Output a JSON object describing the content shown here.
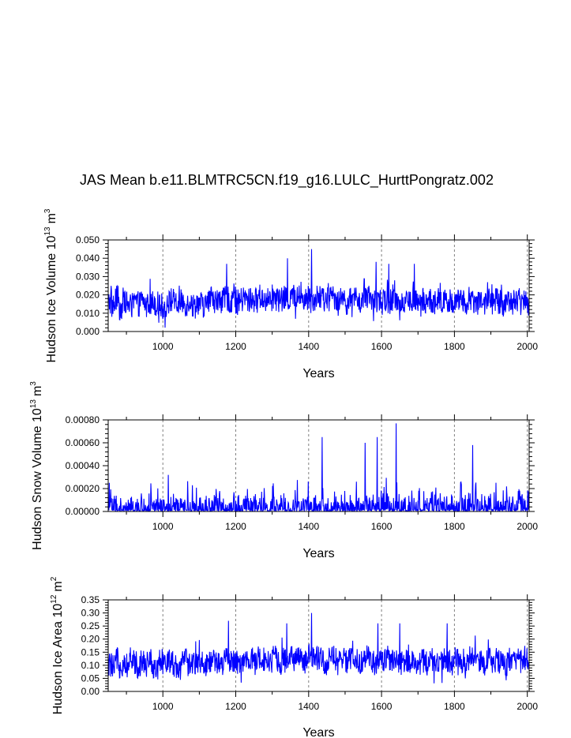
{
  "figure": {
    "title": "JAS Mean b.e11.BLMTRC5CN.f19_g16.LULC_HurttPongratz.002",
    "colors": {
      "line": "#0000ff",
      "axes": "#000000",
      "grid": "#808080"
    }
  },
  "chart_data": [
    {
      "type": "line",
      "title": "JAS Mean b.e11.BLMTRC5CN.f19_g16.LULC_HurttPongratz.002",
      "xlabel": "Years",
      "ylabel": "Hudson Ice Volume 10^13 m^3",
      "ylabel_parts": {
        "main": "Hudson Ice Volume 10",
        "exp1": "13",
        "unit": "m",
        "exp2": "3"
      },
      "xlim": [
        850,
        2005
      ],
      "ylim": [
        0.0,
        0.05
      ],
      "xticks": [
        1000,
        1200,
        1400,
        1600,
        1800,
        2000
      ],
      "xtick_labels": [
        "1000",
        "1200",
        "1400",
        "1600",
        "1800",
        "2000"
      ],
      "yticks": [
        0.0,
        0.01,
        0.02,
        0.03,
        0.04,
        0.05
      ],
      "ytick_labels": [
        "0.000",
        "0.010",
        "0.020",
        "0.030",
        "0.040",
        "0.050"
      ],
      "grid": "vertical dashed at major x ticks",
      "series": [
        {
          "x_start": 850,
          "x_step": 10,
          "values": [
            0.016,
            0.014,
            0.018,
            0.013,
            0.017,
            0.015,
            0.014,
            0.016,
            0.015,
            0.017,
            0.014,
            0.015,
            0.016,
            0.015,
            0.014,
            0.013,
            0.016,
            0.017,
            0.015,
            0.014,
            0.016,
            0.015,
            0.017,
            0.014,
            0.016,
            0.015,
            0.014,
            0.016,
            0.018,
            0.017,
            0.016,
            0.017,
            0.018,
            0.017,
            0.019,
            0.016,
            0.017,
            0.018,
            0.017,
            0.018,
            0.017,
            0.019,
            0.018,
            0.017,
            0.018,
            0.019,
            0.018,
            0.017,
            0.018,
            0.017,
            0.019,
            0.018,
            0.019,
            0.018,
            0.017,
            0.019,
            0.018,
            0.019,
            0.018,
            0.017,
            0.018,
            0.019,
            0.018,
            0.017,
            0.018,
            0.016,
            0.017,
            0.018,
            0.017,
            0.016,
            0.017,
            0.018,
            0.017,
            0.016,
            0.017,
            0.016,
            0.017,
            0.016,
            0.018,
            0.017,
            0.016,
            0.017,
            0.016,
            0.017,
            0.016,
            0.015,
            0.017,
            0.016,
            0.017,
            0.016,
            0.017,
            0.016,
            0.018,
            0.017,
            0.016,
            0.017,
            0.016,
            0.017,
            0.016,
            0.018,
            0.017,
            0.016,
            0.017,
            0.016,
            0.017,
            0.016,
            0.017,
            0.016,
            0.015,
            0.016,
            0.017,
            0.016,
            0.017,
            0.016,
            0.018,
            0.017
          ]
        }
      ],
      "peaks": [
        [
          1175,
          0.037
        ],
        [
          1342,
          0.04
        ],
        [
          1408,
          0.045
        ],
        [
          1585,
          0.038
        ],
        [
          1620,
          0.037
        ],
        [
          1690,
          0.037
        ]
      ]
    },
    {
      "type": "line",
      "xlabel": "Years",
      "ylabel": "Hudson Snow Volume 10^13 m^3",
      "ylabel_parts": {
        "main": "Hudson Snow Volume 10",
        "exp1": "13",
        "unit": "m",
        "exp2": "3"
      },
      "xlim": [
        850,
        2005
      ],
      "ylim": [
        0.0,
        0.0008
      ],
      "xticks": [
        1000,
        1200,
        1400,
        1600,
        1800,
        2000
      ],
      "xtick_labels": [
        "1000",
        "1200",
        "1400",
        "1600",
        "1800",
        "2000"
      ],
      "yticks": [
        0.0,
        0.0002,
        0.0004,
        0.0006,
        0.0008
      ],
      "ytick_labels": [
        "0.00000",
        "0.00020",
        "0.00040",
        "0.00060",
        "0.00080"
      ],
      "grid": "vertical dashed at major x ticks",
      "series": [
        {
          "x_start": 850,
          "x_step": 10,
          "values": [
            3e-05,
            4e-05,
            2e-05,
            3e-05,
            2e-05,
            3e-05,
            2e-05,
            3e-05,
            2e-05,
            3e-05,
            2e-05,
            4e-05,
            3e-05,
            3e-05,
            4e-05,
            3e-05,
            2e-05,
            4e-05,
            3e-05,
            3e-05,
            2e-05,
            4e-05,
            3e-05,
            4e-05,
            3e-05,
            2e-05,
            4e-05,
            3e-05,
            3e-05,
            4e-05,
            3e-05,
            3e-05,
            2e-05,
            3e-05,
            4e-05,
            3e-05,
            2e-05,
            4e-05,
            3e-05,
            3e-05,
            4e-05,
            3e-05,
            3e-05,
            2e-05,
            3e-05,
            4e-05,
            3e-05,
            3e-05,
            4e-05,
            2e-05,
            3e-05,
            4e-05,
            3e-05,
            3e-05,
            4e-05,
            3e-05,
            3e-05,
            2e-05,
            3e-05,
            2e-05,
            3e-05,
            2e-05,
            3e-05,
            2e-05,
            3e-05,
            2e-05,
            3e-05,
            2e-05,
            4e-05,
            3e-05,
            4e-05,
            3e-05,
            4e-05,
            3e-05,
            5e-05,
            4e-05,
            5e-05,
            4e-05,
            3e-05,
            4e-05,
            3e-05,
            4e-05,
            3e-05,
            4e-05,
            3e-05,
            4e-05,
            3e-05,
            4e-05,
            3e-05,
            4e-05,
            3e-05,
            3e-05,
            4e-05,
            3e-05,
            4e-05,
            3e-05,
            4e-05,
            3e-05,
            4e-05,
            3e-05,
            4e-05,
            3e-05,
            4e-05,
            3e-05,
            4e-05,
            3e-05,
            4e-05,
            3e-05,
            3e-05,
            4e-05,
            3e-05,
            4e-05,
            3e-05,
            4e-05,
            5e-05,
            6e-05
          ]
        }
      ],
      "peaks": [
        [
          853,
          0.00025
        ],
        [
          1015,
          0.00032
        ],
        [
          1437,
          0.00065
        ],
        [
          1555,
          0.0006
        ],
        [
          1588,
          0.00065
        ],
        [
          1640,
          0.00077
        ],
        [
          1850,
          0.00058
        ]
      ]
    },
    {
      "type": "line",
      "xlabel": "Years",
      "ylabel": "Hudson Ice Area 10^12 m^2",
      "ylabel_parts": {
        "main": "Hudson Ice Area 10",
        "exp1": "12",
        "unit": "m",
        "exp2": "2"
      },
      "xlim": [
        850,
        2005
      ],
      "ylim": [
        0.0,
        0.35
      ],
      "xticks": [
        1000,
        1200,
        1400,
        1600,
        1800,
        2000
      ],
      "xtick_labels": [
        "1000",
        "1200",
        "1400",
        "1600",
        "1800",
        "2000"
      ],
      "yticks": [
        0.0,
        0.05,
        0.1,
        0.15,
        0.2,
        0.25,
        0.3,
        0.35
      ],
      "ytick_labels": [
        "0.00",
        "0.05",
        "0.10",
        "0.15",
        "0.20",
        "0.25",
        "0.30",
        "0.35"
      ],
      "grid": "vertical dashed at major x ticks",
      "series": [
        {
          "x_start": 850,
          "x_step": 10,
          "values": [
            0.1,
            0.09,
            0.12,
            0.1,
            0.11,
            0.1,
            0.12,
            0.11,
            0.1,
            0.12,
            0.1,
            0.11,
            0.1,
            0.09,
            0.11,
            0.1,
            0.12,
            0.11,
            0.1,
            0.09,
            0.11,
            0.12,
            0.11,
            0.1,
            0.12,
            0.11,
            0.1,
            0.11,
            0.12,
            0.11,
            0.1,
            0.11,
            0.12,
            0.11,
            0.12,
            0.11,
            0.1,
            0.12,
            0.11,
            0.12,
            0.11,
            0.13,
            0.12,
            0.11,
            0.12,
            0.13,
            0.12,
            0.11,
            0.12,
            0.11,
            0.13,
            0.12,
            0.13,
            0.12,
            0.11,
            0.13,
            0.12,
            0.13,
            0.12,
            0.11,
            0.12,
            0.13,
            0.12,
            0.11,
            0.12,
            0.11,
            0.12,
            0.13,
            0.12,
            0.11,
            0.12,
            0.13,
            0.12,
            0.11,
            0.12,
            0.11,
            0.12,
            0.11,
            0.13,
            0.12,
            0.11,
            0.12,
            0.11,
            0.12,
            0.11,
            0.1,
            0.12,
            0.11,
            0.12,
            0.11,
            0.12,
            0.11,
            0.13,
            0.12,
            0.11,
            0.12,
            0.11,
            0.12,
            0.11,
            0.13,
            0.12,
            0.11,
            0.12,
            0.11,
            0.12,
            0.11,
            0.12,
            0.11,
            0.1,
            0.11,
            0.12,
            0.11,
            0.12,
            0.11,
            0.13,
            0.12
          ]
        }
      ],
      "peaks": [
        [
          1180,
          0.27
        ],
        [
          1340,
          0.26
        ],
        [
          1408,
          0.3
        ],
        [
          1590,
          0.26
        ],
        [
          1650,
          0.26
        ],
        [
          1780,
          0.26
        ]
      ]
    }
  ]
}
